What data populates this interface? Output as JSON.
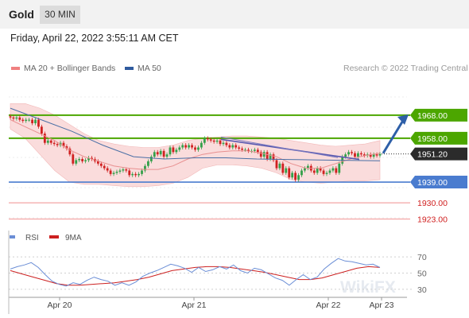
{
  "header": {
    "symbol": "Gold",
    "timeframe": "30 MIN"
  },
  "datetime": "Friday, April 22, 2022 3:55:11 AM CET",
  "legend": {
    "ma20_bb": "MA 20 + Bollinger Bands",
    "ma50": "MA 50"
  },
  "credit": "Research © 2022 Trading Central",
  "watermark": "WikiFX",
  "colors": {
    "level_green": "#4ca600",
    "support_blue": "#4a7ccf",
    "level_red": "#f4a6a6",
    "bb_fill": "#fadcdc",
    "ma20": "#e89090",
    "ma50": "#4a6fa5",
    "trend_line": "#5a5ab0",
    "arrow": "#2e5fa8",
    "candle_up": "#34a04a",
    "candle_down": "#d02020",
    "rsi": "#6b8ed6",
    "rsi_ma": "#cc2020"
  },
  "chart_data": [
    {
      "type": "candlestick",
      "title": "",
      "x_ticks": [
        "Apr 20",
        "Apr 21",
        "Apr 22",
        "Apr 23"
      ],
      "ylim": [
        1918,
        1980
      ],
      "levels": [
        {
          "value": 1968.0,
          "label": "1968.00",
          "style": "resistance"
        },
        {
          "value": 1958.0,
          "label": "1958.00",
          "style": "resistance"
        },
        {
          "value": 1951.2,
          "label": "1951.20",
          "style": "current"
        },
        {
          "value": 1939.0,
          "label": "1939.00",
          "style": "support"
        },
        {
          "value": 1930.0,
          "label": "1930.00",
          "style": "minor"
        },
        {
          "value": 1923.0,
          "label": "1923.00",
          "style": "minor"
        }
      ],
      "close_series": [
        1967,
        1966.5,
        1967,
        1966,
        1965.5,
        1966,
        1966,
        1964.5,
        1966,
        1963,
        1960,
        1956,
        1957,
        1956,
        1955.5,
        1955,
        1956,
        1954.5,
        1953.5,
        1951,
        1947,
        1948.5,
        1949,
        1948,
        1948.5,
        1949.5,
        1949,
        1948,
        1947,
        1946,
        1945,
        1944,
        1942.5,
        1943,
        1943.5,
        1944,
        1944.5,
        1944,
        1942,
        1942.5,
        1942,
        1942.5,
        1944,
        1946,
        1948,
        1950,
        1952,
        1951,
        1952.5,
        1950,
        1951,
        1954,
        1952,
        1953,
        1954,
        1955,
        1954,
        1955,
        1954,
        1953,
        1954,
        1956,
        1958,
        1957.5,
        1957,
        1956.5,
        1957,
        1955.5,
        1956,
        1955,
        1954,
        1955,
        1954,
        1953.5,
        1953,
        1953,
        1952.5,
        1952.5,
        1953,
        1952,
        1950,
        1952,
        1949,
        1951,
        1948.5,
        1945,
        1947,
        1943,
        1945,
        1941,
        1943,
        1940,
        1942,
        1944,
        1945,
        1946,
        1944,
        1943,
        1945,
        1944,
        1942.5,
        1943,
        1944,
        1945,
        1943,
        1947,
        1950,
        1951,
        1952,
        1951.5,
        1950,
        1951.5,
        1951,
        1950.5,
        1951,
        1950,
        1951,
        1950.5,
        1951.2
      ],
      "ma20_series": [
        1966,
        1963,
        1960,
        1957,
        1953,
        1950,
        1948,
        1946,
        1945,
        1944.5,
        1944.5,
        1946,
        1949,
        1951,
        1952,
        1952.5,
        1952.5,
        1951.5,
        1950,
        1947,
        1945,
        1945,
        1947,
        1949,
        1950.5,
        1951.5
      ],
      "bollinger_upper": [
        1973,
        1973,
        1971,
        1968,
        1964,
        1960,
        1957,
        1955.5,
        1954.5,
        1954,
        1954,
        1955,
        1957,
        1958,
        1958.5,
        1959,
        1959,
        1958.5,
        1958,
        1957,
        1956,
        1955,
        1954.5,
        1955,
        1955.5,
        1957
      ],
      "bollinger_lower": [
        1962,
        1958,
        1951,
        1944,
        1939,
        1938,
        1938,
        1937.5,
        1937,
        1937,
        1937.5,
        1938.5,
        1941,
        1945,
        1946.5,
        1946.5,
        1946,
        1945,
        1943,
        1940,
        1939,
        1938.5,
        1939,
        1939.5,
        1939.5,
        1940
      ],
      "ma50_series": [
        1971,
        1966,
        1961,
        1955,
        1950,
        1949,
        1949.5,
        1949.5,
        1949,
        1948.8,
        1948.6,
        1948.4,
        1948.2
      ]
    },
    {
      "type": "line",
      "title": "",
      "series": [
        {
          "name": "RSI",
          "values": [
            55,
            58,
            60,
            63,
            57,
            48,
            40,
            36,
            34,
            38,
            36,
            41,
            45,
            42,
            40,
            35,
            38,
            35,
            39,
            46,
            50,
            53,
            57,
            61,
            59,
            56,
            51,
            57,
            52,
            54,
            58,
            55,
            60,
            53,
            50,
            56,
            54,
            49,
            44,
            41,
            35,
            42,
            48,
            42,
            45,
            55,
            62,
            68,
            65,
            64,
            62,
            60,
            61,
            57
          ]
        },
        {
          "name": "9MA",
          "values": [
            53,
            49,
            45,
            41,
            37,
            35,
            35,
            36,
            37,
            38,
            40,
            42,
            45,
            49,
            53,
            55,
            57,
            58,
            58,
            57,
            55,
            53,
            51,
            48,
            45,
            42,
            42,
            44,
            48,
            52,
            56,
            58,
            57
          ]
        }
      ],
      "y_ticks": [
        "70",
        "50",
        "30"
      ],
      "ylim": [
        20,
        80
      ]
    }
  ]
}
